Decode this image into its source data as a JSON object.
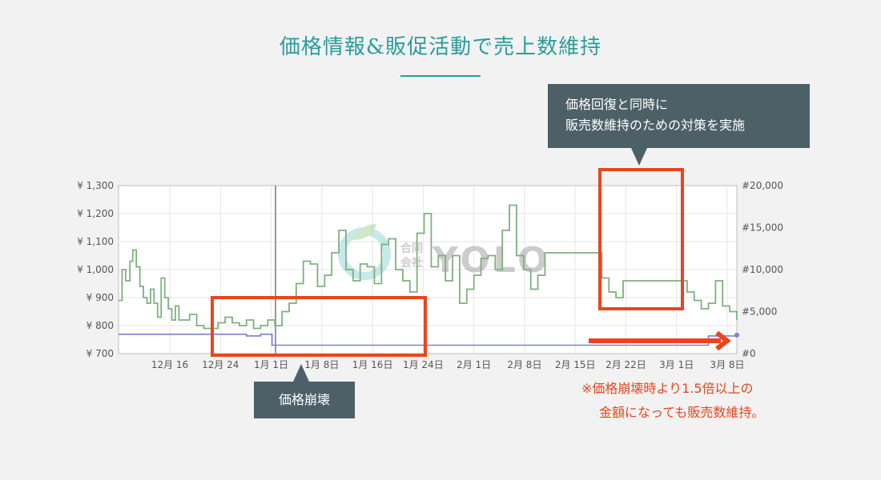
{
  "title": "価格情報&販促活動で売上数維持",
  "callout_top": {
    "line1": "価格回復と同時に",
    "line2": "販売数維持のための対策を実施"
  },
  "callout_bottom": "価格崩壊",
  "note": {
    "line1": "※価格崩壊時より1.5倍以上の",
    "line2": "金額になっても販売数維持。"
  },
  "watermark": {
    "small1": "合同",
    "small2": "会社",
    "big": "YOLO"
  },
  "colors": {
    "price": "#7fb07f",
    "rank": "#7b7fd4",
    "highlight": "#e8461e",
    "callout": "#4d6068",
    "title": "#2a9d9a"
  },
  "chart_data": {
    "type": "line",
    "x_labels": [
      "12月 16",
      "12月 24",
      "1月 1日",
      "1月 8日",
      "1月 16日",
      "1月 24日",
      "2月 1日",
      "2月 8日",
      "2月 15日",
      "2月 22日",
      "3月 1日",
      "3月 8日"
    ],
    "y_left": {
      "ticks": [
        "¥ 700",
        "¥ 800",
        "¥ 900",
        "¥ 1,000",
        "¥ 1,100",
        "¥ 1,200",
        "¥ 1,300"
      ],
      "min": 700,
      "max": 1300
    },
    "y_right": {
      "ticks": [
        "#0",
        "#5,000",
        "#10,000",
        "#15,000",
        "#20,000"
      ],
      "min": 0,
      "max": 20000
    },
    "x_range": [
      0,
      87
    ],
    "series": [
      {
        "key": "price",
        "points": [
          [
            0,
            890
          ],
          [
            0.5,
            1000
          ],
          [
            1,
            960
          ],
          [
            1.6,
            1030
          ],
          [
            2,
            1070
          ],
          [
            2.5,
            1010
          ],
          [
            3,
            940
          ],
          [
            3.5,
            900
          ],
          [
            4,
            880
          ],
          [
            4.5,
            930
          ],
          [
            5,
            880
          ],
          [
            5.5,
            830
          ],
          [
            6,
            970
          ],
          [
            6.5,
            900
          ],
          [
            7,
            860
          ],
          [
            7.5,
            820
          ],
          [
            8,
            870
          ],
          [
            8.5,
            820
          ],
          [
            9,
            820
          ],
          [
            10,
            840
          ],
          [
            11,
            800
          ],
          [
            12,
            790
          ],
          [
            13,
            790
          ],
          [
            14,
            810
          ],
          [
            15,
            830
          ],
          [
            16,
            810
          ],
          [
            17,
            800
          ],
          [
            18,
            820
          ],
          [
            19,
            790
          ],
          [
            20,
            800
          ],
          [
            21,
            820
          ],
          [
            22,
            800
          ],
          [
            23,
            850
          ],
          [
            24,
            880
          ],
          [
            25,
            950
          ],
          [
            26,
            1030
          ],
          [
            27,
            1020
          ],
          [
            28,
            940
          ],
          [
            29,
            980
          ],
          [
            30,
            1060
          ],
          [
            31,
            1140
          ],
          [
            32,
            1000
          ],
          [
            33,
            960
          ],
          [
            34,
            1020
          ],
          [
            35,
            1010
          ],
          [
            36,
            950
          ],
          [
            37,
            1090
          ],
          [
            38,
            1110
          ],
          [
            39,
            1000
          ],
          [
            40,
            960
          ],
          [
            41,
            920
          ],
          [
            42,
            1130
          ],
          [
            43,
            1200
          ],
          [
            44,
            1010
          ],
          [
            45,
            1050
          ],
          [
            46,
            960
          ],
          [
            47,
            1050
          ],
          [
            48,
            880
          ],
          [
            49,
            930
          ],
          [
            50,
            980
          ],
          [
            51,
            1040
          ],
          [
            52,
            1050
          ],
          [
            53,
            1000
          ],
          [
            54,
            1140
          ],
          [
            55,
            1230
          ],
          [
            56,
            1050
          ],
          [
            57,
            1000
          ],
          [
            58,
            930
          ],
          [
            59,
            980
          ],
          [
            60,
            1060
          ],
          [
            61,
            1060
          ],
          [
            62,
            1060
          ],
          [
            63,
            1060
          ],
          [
            64,
            1060
          ],
          [
            65,
            1060
          ],
          [
            66,
            1060
          ],
          [
            67,
            1060
          ],
          [
            68,
            970
          ],
          [
            69,
            920
          ],
          [
            70,
            900
          ],
          [
            71,
            960
          ],
          [
            72,
            960
          ],
          [
            73,
            960
          ],
          [
            74,
            960
          ],
          [
            75,
            960
          ],
          [
            76,
            960
          ],
          [
            77,
            960
          ],
          [
            78,
            960
          ],
          [
            79,
            960
          ],
          [
            80,
            920
          ],
          [
            81,
            890
          ],
          [
            82,
            860
          ],
          [
            83,
            880
          ],
          [
            84,
            960
          ],
          [
            85,
            870
          ],
          [
            86,
            850
          ],
          [
            87,
            820
          ]
        ]
      },
      {
        "key": "rank",
        "points": [
          [
            0,
            2300
          ],
          [
            4,
            2300
          ],
          [
            14,
            2300
          ],
          [
            17,
            2300
          ],
          [
            18,
            2100
          ],
          [
            19,
            2100
          ],
          [
            20,
            2300
          ],
          [
            21,
            2300
          ],
          [
            21.6,
            1000
          ],
          [
            30,
            1000
          ],
          [
            40,
            1000
          ],
          [
            50,
            1000
          ],
          [
            55,
            1000
          ],
          [
            58,
            1000
          ],
          [
            65,
            1000
          ],
          [
            70,
            1000
          ],
          [
            75,
            1000
          ],
          [
            80,
            1000
          ],
          [
            82,
            1000
          ],
          [
            83,
            2100
          ],
          [
            85,
            2100
          ],
          [
            87,
            2200
          ]
        ]
      }
    ]
  }
}
